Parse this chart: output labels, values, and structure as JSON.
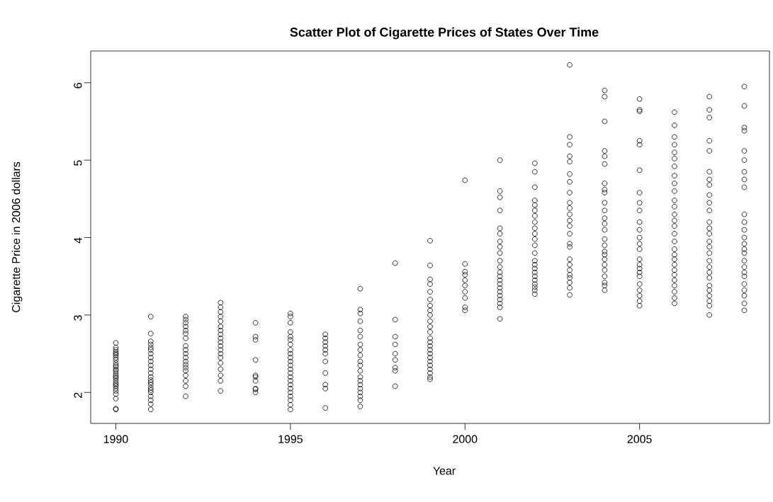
{
  "chart_data": {
    "type": "scatter",
    "title": "Scatter Plot of Cigarette Prices of States Over Time",
    "xlabel": "Year",
    "ylabel": "Cigarette Price in 2006 dollars",
    "xlim": [
      1989.28,
      2008.72
    ],
    "ylim": [
      1.6,
      6.41
    ],
    "xticks": [
      1990,
      1995,
      2000,
      2005
    ],
    "yticks": [
      2,
      3,
      4,
      5,
      6
    ],
    "marker": "circle",
    "series": [
      {
        "color": "#000000",
        "x": [
          1990,
          1990,
          1990,
          1990,
          1990,
          1990,
          1990,
          1990,
          1990,
          1990,
          1990,
          1990,
          1990,
          1990,
          1990,
          1990,
          1990,
          1990,
          1990,
          1990,
          1990,
          1990,
          1990,
          1990,
          1990,
          1990,
          1990,
          1991,
          1991,
          1991,
          1991,
          1991,
          1991,
          1991,
          1991,
          1991,
          1991,
          1991,
          1991,
          1991,
          1991,
          1991,
          1991,
          1991,
          1991,
          1991,
          1991,
          1991,
          1991,
          1991,
          1992,
          1992,
          1992,
          1992,
          1992,
          1992,
          1992,
          1992,
          1992,
          1992,
          1992,
          1992,
          1992,
          1992,
          1992,
          1992,
          1992,
          1992,
          1992,
          1993,
          1993,
          1993,
          1993,
          1993,
          1993,
          1993,
          1993,
          1993,
          1993,
          1993,
          1993,
          1993,
          1993,
          1993,
          1993,
          1993,
          1993,
          1993,
          1994,
          1994,
          1994,
          1994,
          1994,
          1994,
          1994,
          1994,
          1994,
          1994,
          1995,
          1995,
          1995,
          1995,
          1995,
          1995,
          1995,
          1995,
          1995,
          1995,
          1995,
          1995,
          1995,
          1995,
          1995,
          1995,
          1995,
          1995,
          1995,
          1995,
          1995,
          1995,
          1995,
          1996,
          1996,
          1996,
          1996,
          1996,
          1996,
          1996,
          1996,
          1996,
          1996,
          1996,
          1997,
          1997,
          1997,
          1997,
          1997,
          1997,
          1997,
          1997,
          1997,
          1997,
          1997,
          1997,
          1997,
          1997,
          1997,
          1997,
          1997,
          1997,
          1997,
          1997,
          1998,
          1998,
          1998,
          1998,
          1998,
          1998,
          1998,
          1998,
          1998,
          1999,
          1999,
          1999,
          1999,
          1999,
          1999,
          1999,
          1999,
          1999,
          1999,
          1999,
          1999,
          1999,
          1999,
          1999,
          1999,
          1999,
          1999,
          1999,
          1999,
          1999,
          1999,
          1999,
          1999,
          2000,
          2000,
          2000,
          2000,
          2000,
          2000,
          2000,
          2000,
          2000,
          2000,
          2001,
          2001,
          2001,
          2001,
          2001,
          2001,
          2001,
          2001,
          2001,
          2001,
          2001,
          2001,
          2001,
          2001,
          2001,
          2001,
          2001,
          2001,
          2001,
          2001,
          2001,
          2001,
          2002,
          2002,
          2002,
          2002,
          2002,
          2002,
          2002,
          2002,
          2002,
          2002,
          2002,
          2002,
          2002,
          2002,
          2002,
          2002,
          2002,
          2002,
          2002,
          2002,
          2002,
          2002,
          2002,
          2003,
          2003,
          2003,
          2003,
          2003,
          2003,
          2003,
          2003,
          2003,
          2003,
          2003,
          2003,
          2003,
          2003,
          2003,
          2003,
          2003,
          2003,
          2003,
          2003,
          2003,
          2003,
          2003,
          2003,
          2004,
          2004,
          2004,
          2004,
          2004,
          2004,
          2004,
          2004,
          2004,
          2004,
          2004,
          2004,
          2004,
          2004,
          2004,
          2004,
          2004,
          2004,
          2004,
          2004,
          2004,
          2004,
          2004,
          2004,
          2004,
          2005,
          2005,
          2005,
          2005,
          2005,
          2005,
          2005,
          2005,
          2005,
          2005,
          2005,
          2005,
          2005,
          2005,
          2005,
          2005,
          2005,
          2005,
          2005,
          2005,
          2005,
          2005,
          2005,
          2005,
          2006,
          2006,
          2006,
          2006,
          2006,
          2006,
          2006,
          2006,
          2006,
          2006,
          2006,
          2006,
          2006,
          2006,
          2006,
          2006,
          2006,
          2006,
          2006,
          2006,
          2006,
          2006,
          2006,
          2006,
          2006,
          2006,
          2006,
          2006,
          2007,
          2007,
          2007,
          2007,
          2007,
          2007,
          2007,
          2007,
          2007,
          2007,
          2007,
          2007,
          2007,
          2007,
          2007,
          2007,
          2007,
          2007,
          2007,
          2007,
          2007,
          2007,
          2007,
          2007,
          2007,
          2007,
          2007,
          2008,
          2008,
          2008,
          2008,
          2008,
          2008,
          2008,
          2008,
          2008,
          2008,
          2008,
          2008,
          2008,
          2008,
          2008,
          2008,
          2008,
          2008,
          2008,
          2008,
          2008,
          2008,
          2008,
          2008,
          2008
        ],
        "values": [
          1.78,
          1.79,
          1.92,
          1.98,
          2.02,
          2.05,
          2.08,
          2.1,
          2.12,
          2.15,
          2.18,
          2.2,
          2.22,
          2.25,
          2.28,
          2.3,
          2.33,
          2.35,
          2.38,
          2.42,
          2.45,
          2.48,
          2.5,
          2.52,
          2.55,
          2.58,
          2.64,
          1.78,
          1.85,
          1.9,
          1.95,
          2.0,
          2.03,
          2.06,
          2.1,
          2.13,
          2.16,
          2.2,
          2.25,
          2.3,
          2.35,
          2.4,
          2.45,
          2.5,
          2.55,
          2.58,
          2.62,
          2.66,
          2.76,
          2.98,
          1.95,
          2.08,
          2.15,
          2.22,
          2.28,
          2.32,
          2.36,
          2.4,
          2.45,
          2.5,
          2.55,
          2.6,
          2.7,
          2.76,
          2.8,
          2.85,
          2.9,
          2.94,
          2.98,
          2.02,
          2.15,
          2.22,
          2.3,
          2.38,
          2.45,
          2.5,
          2.55,
          2.6,
          2.65,
          2.7,
          2.75,
          2.8,
          2.85,
          2.92,
          2.98,
          3.04,
          3.1,
          3.16,
          2.0,
          2.04,
          2.05,
          2.15,
          2.2,
          2.22,
          2.42,
          2.68,
          2.72,
          2.9,
          1.78,
          1.84,
          1.9,
          1.95,
          2.0,
          2.05,
          2.1,
          2.15,
          2.2,
          2.25,
          2.3,
          2.35,
          2.4,
          2.45,
          2.5,
          2.55,
          2.62,
          2.68,
          2.72,
          2.78,
          2.9,
          2.98,
          3.02,
          1.8,
          2.05,
          2.1,
          2.25,
          2.4,
          2.5,
          2.55,
          2.6,
          2.65,
          2.7,
          2.75,
          1.82,
          1.9,
          1.95,
          2.0,
          2.05,
          2.1,
          2.15,
          2.2,
          2.28,
          2.35,
          2.4,
          2.48,
          2.55,
          2.62,
          2.72,
          2.8,
          2.92,
          3.02,
          3.07,
          3.34,
          2.08,
          2.28,
          2.32,
          2.42,
          2.5,
          2.62,
          2.72,
          2.94,
          3.67,
          2.17,
          2.2,
          2.25,
          2.3,
          2.35,
          2.4,
          2.45,
          2.5,
          2.55,
          2.6,
          2.65,
          2.7,
          2.78,
          2.85,
          2.92,
          3.0,
          3.06,
          3.12,
          3.2,
          3.3,
          3.4,
          3.46,
          3.64,
          3.96,
          3.06,
          3.1,
          3.22,
          3.3,
          3.38,
          3.45,
          3.52,
          3.56,
          3.66,
          4.74,
          2.95,
          3.1,
          3.15,
          3.2,
          3.25,
          3.3,
          3.35,
          3.4,
          3.45,
          3.5,
          3.55,
          3.62,
          3.7,
          3.8,
          3.88,
          3.95,
          4.05,
          4.12,
          4.35,
          4.52,
          4.6,
          5.0,
          3.27,
          3.32,
          3.36,
          3.4,
          3.45,
          3.5,
          3.55,
          3.6,
          3.65,
          3.7,
          3.8,
          3.9,
          3.98,
          4.05,
          4.12,
          4.2,
          4.28,
          4.35,
          4.42,
          4.48,
          4.65,
          4.85,
          4.96,
          3.26,
          3.35,
          3.42,
          3.48,
          3.52,
          3.58,
          3.65,
          3.72,
          3.88,
          3.92,
          4.05,
          4.15,
          4.22,
          4.3,
          4.38,
          4.45,
          4.58,
          4.72,
          4.82,
          4.98,
          5.05,
          5.2,
          5.3,
          6.23,
          3.32,
          3.38,
          3.42,
          3.5,
          3.58,
          3.65,
          3.72,
          3.78,
          3.82,
          3.9,
          3.98,
          4.1,
          4.18,
          4.25,
          4.35,
          4.45,
          4.58,
          4.62,
          4.7,
          4.95,
          5.05,
          5.12,
          5.5,
          5.82,
          5.9,
          3.12,
          3.18,
          3.25,
          3.32,
          3.4,
          3.5,
          3.55,
          3.6,
          3.65,
          3.72,
          3.85,
          3.92,
          4.0,
          4.1,
          4.2,
          4.35,
          4.45,
          4.58,
          4.87,
          5.2,
          5.25,
          5.63,
          5.65,
          5.79,
          3.15,
          3.22,
          3.3,
          3.38,
          3.45,
          3.52,
          3.58,
          3.65,
          3.72,
          3.78,
          3.85,
          3.95,
          4.05,
          4.15,
          4.22,
          4.3,
          4.4,
          4.48,
          4.6,
          4.7,
          4.8,
          4.92,
          5.02,
          5.1,
          5.2,
          5.3,
          5.45,
          5.62,
          3.0,
          3.12,
          3.18,
          3.25,
          3.32,
          3.38,
          3.48,
          3.55,
          3.62,
          3.7,
          3.8,
          3.88,
          3.95,
          4.05,
          4.12,
          4.2,
          4.35,
          4.45,
          4.55,
          4.68,
          4.75,
          4.85,
          5.12,
          5.25,
          5.55,
          5.65,
          5.82,
          3.06,
          3.15,
          3.25,
          3.32,
          3.4,
          3.5,
          3.55,
          3.62,
          3.7,
          3.8,
          3.85,
          3.92,
          4.0,
          4.1,
          4.2,
          4.3,
          4.65,
          4.75,
          4.85,
          5.0,
          5.12,
          5.38,
          5.42,
          5.7,
          5.95
        ]
      }
    ]
  }
}
